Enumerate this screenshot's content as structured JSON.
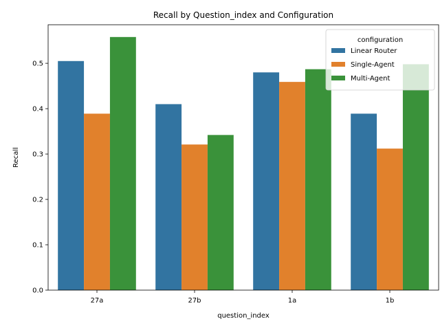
{
  "chart_data": {
    "type": "bar",
    "title": "Recall by Question_index and Configuration",
    "xlabel": "question_index",
    "ylabel": "Recall",
    "categories": [
      "27a",
      "27b",
      "1a",
      "1b"
    ],
    "ylim": [
      0,
      0.585
    ],
    "yticks": [
      "0.0",
      "0.1",
      "0.2",
      "0.3",
      "0.4",
      "0.5"
    ],
    "grid": false,
    "legend": {
      "title": "configuration",
      "placement": "top-right"
    },
    "series": [
      {
        "name": "Linear Router",
        "color": "#3274a1",
        "values": [
          0.505,
          0.41,
          0.48,
          0.389
        ]
      },
      {
        "name": "Single-Agent",
        "color": "#e1812c",
        "values": [
          0.389,
          0.321,
          0.459,
          0.312
        ]
      },
      {
        "name": "Multi-Agent",
        "color": "#3a923a",
        "values": [
          0.558,
          0.342,
          0.487,
          0.498
        ]
      }
    ]
  }
}
